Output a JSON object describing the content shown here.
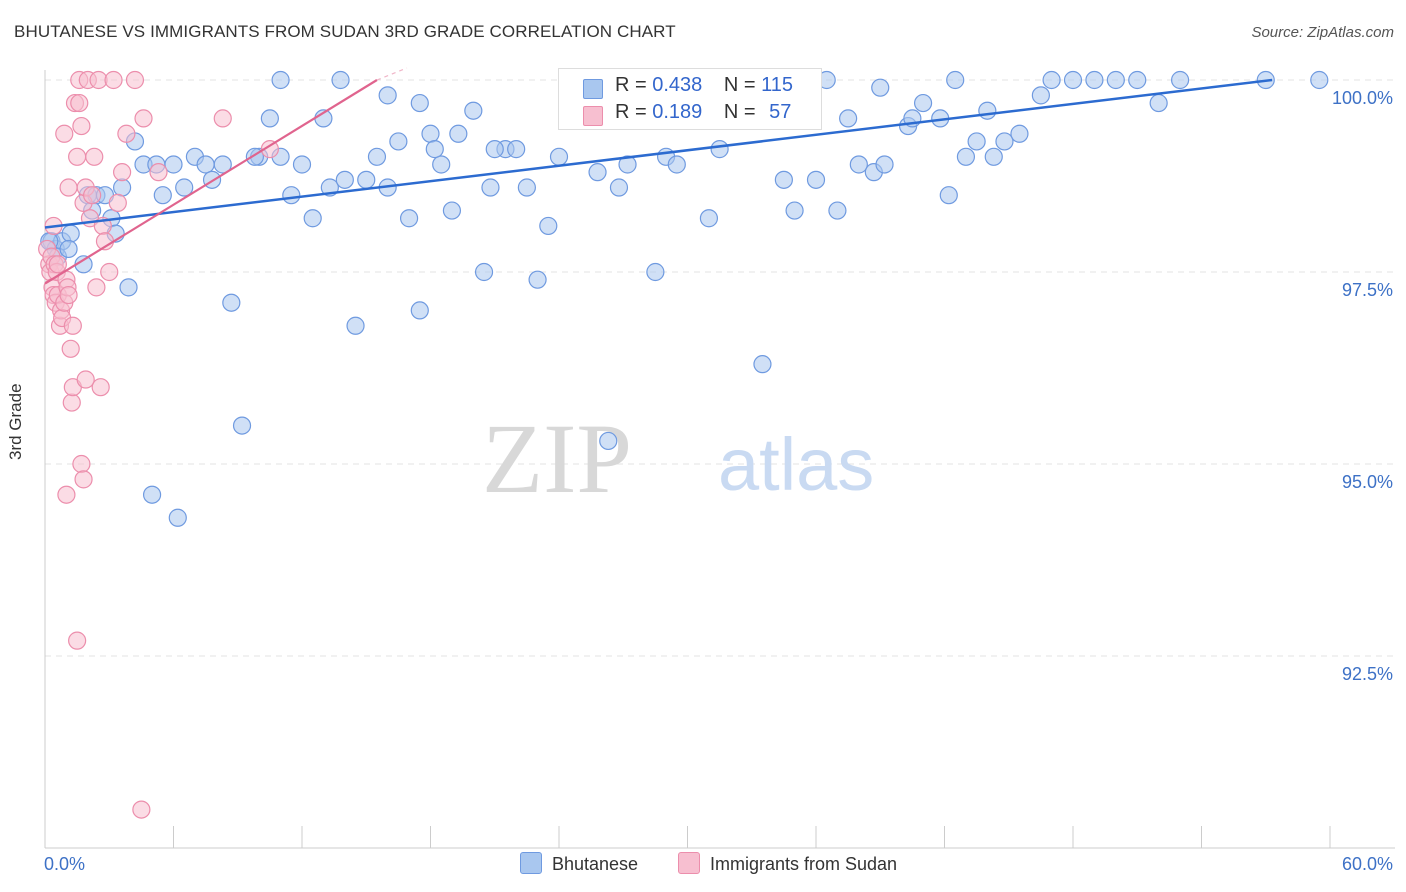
{
  "title": "BHUTANESE VS IMMIGRANTS FROM SUDAN 3RD GRADE CORRELATION CHART",
  "source": "Source: ZipAtlas.com",
  "watermark": {
    "zip": "ZIP",
    "atlas": "atlas"
  },
  "legend_top": {
    "r_label": "R = ",
    "n_label": "N = ",
    "series": [
      {
        "r": "0.438",
        "n": "115"
      },
      {
        "r": "0.189",
        "n": "57"
      }
    ]
  },
  "legend_bottom": [
    "Bhutanese",
    "Immigrants from Sudan"
  ],
  "colors": {
    "blue_fill": "#a9c7ef",
    "blue_stroke": "#6f9ae0",
    "blue_line": "#2c6bd0",
    "pink_fill": "#f7bfd0",
    "pink_stroke": "#ec8eac",
    "pink_line": "#e0648e",
    "tick_label": "#3d71c6",
    "grid": "#e3e3e3"
  },
  "chart_data": {
    "type": "scatter",
    "title": "BHUTANESE VS IMMIGRANTS FROM SUDAN 3RD GRADE CORRELATION CHART",
    "xlabel": "",
    "ylabel": "3rd Grade",
    "xlim": [
      0,
      60
    ],
    "ylim": [
      90.2,
      100.5
    ],
    "x_tick_labels": [
      "0.0%",
      "60.0%"
    ],
    "y_ticks": [
      92.5,
      95.0,
      97.5,
      100.0
    ],
    "y_tick_labels": [
      "92.5%",
      "95.0%",
      "97.5%",
      "100.0%"
    ],
    "series": [
      {
        "name": "Bhutanese",
        "r": 0.438,
        "n": 115,
        "trend": {
          "x": [
            0,
            57.3
          ],
          "y": [
            98.08,
            100.0
          ]
        },
        "points": [
          [
            0.3,
            97.9
          ],
          [
            0.5,
            97.8
          ],
          [
            0.8,
            97.9
          ],
          [
            1.2,
            98.0
          ],
          [
            1.8,
            97.6
          ],
          [
            2.0,
            98.5
          ],
          [
            2.4,
            98.5
          ],
          [
            2.8,
            98.5
          ],
          [
            3.1,
            98.2
          ],
          [
            3.6,
            98.6
          ],
          [
            3.9,
            97.3
          ],
          [
            4.2,
            99.2
          ],
          [
            4.6,
            98.9
          ],
          [
            5.2,
            98.9
          ],
          [
            5.5,
            98.5
          ],
          [
            6.0,
            98.9
          ],
          [
            6.5,
            98.6
          ],
          [
            7.0,
            99.0
          ],
          [
            7.5,
            98.9
          ],
          [
            8.3,
            98.9
          ],
          [
            8.7,
            97.1
          ],
          [
            9.2,
            95.5
          ],
          [
            10.0,
            99.0
          ],
          [
            10.5,
            99.5
          ],
          [
            11.0,
            99.0
          ],
          [
            11.5,
            98.5
          ],
          [
            12.0,
            98.9
          ],
          [
            12.5,
            98.2
          ],
          [
            13.0,
            99.5
          ],
          [
            13.3,
            98.6
          ],
          [
            14.0,
            98.7
          ],
          [
            14.5,
            96.8
          ],
          [
            15.0,
            98.7
          ],
          [
            15.5,
            99.0
          ],
          [
            16.0,
            98.6
          ],
          [
            16.5,
            99.2
          ],
          [
            17.0,
            98.2
          ],
          [
            17.5,
            97.0
          ],
          [
            18.0,
            99.3
          ],
          [
            18.5,
            98.9
          ],
          [
            19.0,
            98.3
          ],
          [
            19.3,
            99.3
          ],
          [
            20.0,
            99.6
          ],
          [
            20.5,
            97.5
          ],
          [
            20.8,
            98.6
          ],
          [
            21.5,
            99.1
          ],
          [
            22.0,
            99.1
          ],
          [
            22.5,
            98.6
          ],
          [
            23.0,
            97.4
          ],
          [
            23.5,
            98.1
          ],
          [
            24.0,
            99.0
          ],
          [
            24.5,
            99.8
          ],
          [
            25.0,
            99.5
          ],
          [
            25.8,
            98.8
          ],
          [
            26.3,
            95.3
          ],
          [
            26.8,
            98.6
          ],
          [
            27.2,
            98.9
          ],
          [
            28.5,
            97.5
          ],
          [
            29.0,
            99.0
          ],
          [
            29.5,
            98.9
          ],
          [
            30.0,
            100.0
          ],
          [
            31.0,
            98.2
          ],
          [
            31.5,
            99.1
          ],
          [
            32.0,
            99.7
          ],
          [
            32.3,
            99.6
          ],
          [
            32.8,
            99.7
          ],
          [
            33.5,
            96.3
          ],
          [
            34.0,
            99.5
          ],
          [
            34.5,
            98.7
          ],
          [
            35.0,
            98.3
          ],
          [
            35.5,
            99.7
          ],
          [
            36.0,
            98.7
          ],
          [
            36.5,
            100.0
          ],
          [
            37.0,
            98.3
          ],
          [
            37.5,
            99.5
          ],
          [
            38.0,
            98.9
          ],
          [
            38.7,
            98.8
          ],
          [
            39.2,
            98.9
          ],
          [
            40.3,
            99.4
          ],
          [
            40.5,
            99.5
          ],
          [
            41.8,
            99.5
          ],
          [
            42.2,
            98.5
          ],
          [
            42.5,
            100.0
          ],
          [
            43.0,
            99.0
          ],
          [
            43.5,
            99.2
          ],
          [
            44.0,
            99.6
          ],
          [
            44.3,
            99.0
          ],
          [
            44.8,
            99.2
          ],
          [
            45.5,
            99.3
          ],
          [
            46.5,
            99.8
          ],
          [
            47.0,
            100.0
          ],
          [
            48.0,
            100.0
          ],
          [
            50.0,
            100.0
          ],
          [
            51.0,
            100.0
          ],
          [
            52.0,
            99.7
          ],
          [
            53.0,
            100.0
          ],
          [
            57.0,
            100.0
          ],
          [
            59.5,
            100.0
          ],
          [
            0.6,
            97.7
          ],
          [
            1.1,
            97.8
          ],
          [
            2.2,
            98.3
          ],
          [
            5.0,
            94.6
          ],
          [
            6.2,
            94.3
          ],
          [
            7.8,
            98.7
          ],
          [
            9.8,
            99.0
          ],
          [
            11.0,
            100.0
          ],
          [
            13.8,
            100.0
          ],
          [
            16.0,
            99.8
          ],
          [
            17.5,
            99.7
          ],
          [
            21.0,
            99.1
          ],
          [
            25.5,
            100.0
          ],
          [
            35.0,
            99.8
          ],
          [
            41.0,
            99.7
          ],
          [
            49.0,
            100.0
          ],
          [
            18.2,
            99.1
          ],
          [
            39.0,
            99.9
          ],
          [
            0.2,
            97.9
          ],
          [
            3.3,
            98.0
          ]
        ]
      },
      {
        "name": "Immigrants from Sudan",
        "r": 0.189,
        "n": 57,
        "trend": {
          "x": [
            0,
            15.5
          ],
          "y": [
            97.35,
            100.0
          ]
        },
        "points": [
          [
            0.1,
            97.8
          ],
          [
            0.2,
            97.6
          ],
          [
            0.25,
            97.5
          ],
          [
            0.3,
            97.7
          ],
          [
            0.35,
            97.3
          ],
          [
            0.4,
            97.2
          ],
          [
            0.45,
            97.6
          ],
          [
            0.5,
            97.1
          ],
          [
            0.55,
            97.5
          ],
          [
            0.6,
            97.2
          ],
          [
            0.7,
            96.8
          ],
          [
            0.75,
            97.0
          ],
          [
            0.8,
            96.9
          ],
          [
            0.9,
            97.1
          ],
          [
            1.0,
            97.4
          ],
          [
            1.05,
            97.3
          ],
          [
            1.1,
            97.2
          ],
          [
            1.2,
            96.5
          ],
          [
            1.25,
            95.8
          ],
          [
            1.3,
            96.0
          ],
          [
            1.4,
            99.7
          ],
          [
            1.5,
            99.0
          ],
          [
            1.6,
            100.0
          ],
          [
            1.7,
            99.4
          ],
          [
            1.8,
            98.4
          ],
          [
            1.9,
            98.6
          ],
          [
            2.0,
            100.0
          ],
          [
            2.1,
            98.2
          ],
          [
            2.2,
            98.5
          ],
          [
            2.3,
            99.0
          ],
          [
            2.4,
            97.3
          ],
          [
            2.5,
            100.0
          ],
          [
            2.6,
            96.0
          ],
          [
            2.7,
            98.1
          ],
          [
            2.8,
            97.9
          ],
          [
            3.0,
            97.5
          ],
          [
            3.2,
            100.0
          ],
          [
            3.4,
            98.4
          ],
          [
            3.6,
            98.8
          ],
          [
            3.8,
            99.3
          ],
          [
            4.2,
            100.0
          ],
          [
            4.6,
            99.5
          ],
          [
            5.3,
            98.8
          ],
          [
            8.3,
            99.5
          ],
          [
            10.5,
            99.1
          ],
          [
            0.4,
            98.1
          ],
          [
            0.6,
            97.6
          ],
          [
            0.9,
            99.3
          ],
          [
            1.1,
            98.6
          ],
          [
            1.3,
            96.8
          ],
          [
            1.6,
            99.7
          ],
          [
            1.9,
            96.1
          ],
          [
            1.0,
            94.6
          ],
          [
            1.7,
            95.0
          ],
          [
            1.8,
            94.8
          ],
          [
            1.5,
            92.7
          ],
          [
            4.5,
            90.5
          ]
        ]
      }
    ]
  }
}
